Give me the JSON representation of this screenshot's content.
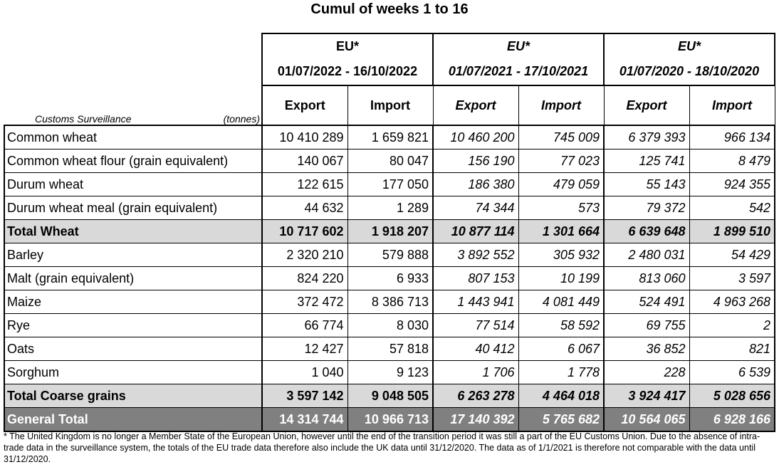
{
  "title": "Cumul of weeks 1 to 16",
  "label_header": "Customs Surveillance",
  "unit": "(tonnes)",
  "periods": [
    {
      "region": "EU*",
      "range": "01/07/2022 - 16/10/2022",
      "export": "Export",
      "import": "Import"
    },
    {
      "region": "EU*",
      "range": "01/07/2021 - 17/10/2021",
      "export": "Export",
      "import": "Import"
    },
    {
      "region": "EU*",
      "range": "01/07/2020 - 18/10/2020",
      "export": "Export",
      "import": "Import"
    }
  ],
  "rows": [
    {
      "name": "Common wheat",
      "type": "normal",
      "values": [
        "10 410 289",
        "1 659 821",
        "10 460 200",
        "745 009",
        "6 379 393",
        "966 134"
      ]
    },
    {
      "name": "Common wheat flour (grain equivalent)",
      "type": "normal",
      "values": [
        "140 067",
        "80 047",
        "156 190",
        "77 023",
        "125 741",
        "8 479"
      ]
    },
    {
      "name": "Durum wheat",
      "type": "normal",
      "values": [
        "122 615",
        "177 050",
        "186 380",
        "479 059",
        "55 143",
        "924 355"
      ]
    },
    {
      "name": "Durum wheat meal (grain equivalent)",
      "type": "normal",
      "values": [
        "44 632",
        "1 289",
        "74 344",
        "573",
        "79 372",
        "542"
      ]
    },
    {
      "name": "Total Wheat",
      "type": "total",
      "values": [
        "10 717 602",
        "1 918 207",
        "10 877 114",
        "1 301 664",
        "6 639 648",
        "1 899 510"
      ]
    },
    {
      "name": "Barley",
      "type": "normal",
      "values": [
        "2 320 210",
        "579 888",
        "3 892 552",
        "305 932",
        "2 480 031",
        "54 429"
      ]
    },
    {
      "name": "Malt (grain equivalent)",
      "type": "normal",
      "values": [
        "824 220",
        "6 933",
        "807 153",
        "10 199",
        "813 060",
        "3 597"
      ]
    },
    {
      "name": "Maize",
      "type": "normal",
      "values": [
        "372 472",
        "8 386 713",
        "1 443 941",
        "4 081 449",
        "524 491",
        "4 963 268"
      ]
    },
    {
      "name": "Rye",
      "type": "normal",
      "values": [
        "66 774",
        "8 030",
        "77 514",
        "58 592",
        "69 755",
        "2"
      ]
    },
    {
      "name": "Oats",
      "type": "normal",
      "values": [
        "12 427",
        "57 818",
        "40 412",
        "6 067",
        "36 852",
        "821"
      ]
    },
    {
      "name": "Sorghum",
      "type": "normal",
      "values": [
        "1 040",
        "9 123",
        "1 706",
        "1 778",
        "228",
        "6 539"
      ]
    },
    {
      "name": "Total Coarse grains",
      "type": "total",
      "values": [
        "3 597 142",
        "9 048 505",
        "6 263 278",
        "4 464 018",
        "3 924 417",
        "5 028 656"
      ]
    },
    {
      "name": "General Total",
      "type": "grand",
      "values": [
        "14 314 744",
        "10 966 713",
        "17 140 392",
        "5 765 682",
        "10 564 065",
        "6 928 166"
      ]
    }
  ],
  "footnote": "* The United Kingdom is no longer a Member State of the European Union, however until the end of the transition period it was still a part of the EU Customs Union. Due to the absence of intra-trade data in the surveillance system, the totals of the EU trade data  therefore also include the UK data until 31/12/2020. The data as of 1/1/2021 is therefore not comparable with the data until 31/12/2020."
}
